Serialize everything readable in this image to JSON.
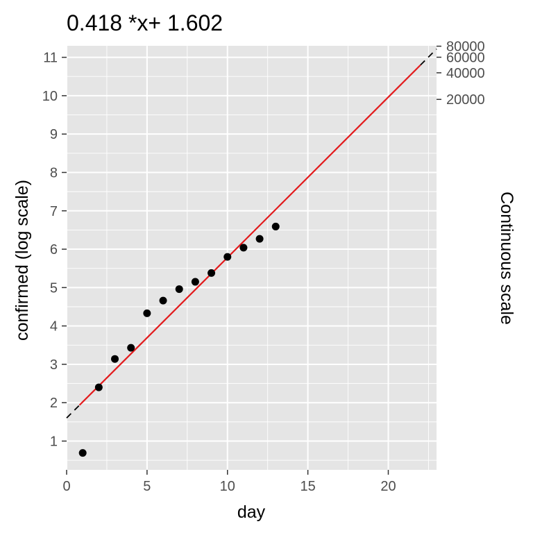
{
  "chart_data": {
    "type": "scatter",
    "title": "0.418 *x+ 1.602",
    "xlabel": "day",
    "ylabel": "confirmed (log scale)",
    "y2label": "Continuous scale",
    "xlim": [
      0,
      23
    ],
    "ylim": [
      0.25,
      11.3
    ],
    "x_ticks": [
      0,
      5,
      10,
      15,
      20
    ],
    "y_ticks": [
      1,
      2,
      3,
      4,
      5,
      6,
      7,
      8,
      9,
      10,
      11
    ],
    "y2_ticks": [
      20000,
      40000,
      60000,
      80000
    ],
    "grid": true,
    "points": {
      "x": [
        1,
        2,
        3,
        4,
        5,
        6,
        7,
        8,
        9,
        10,
        11,
        12,
        13
      ],
      "y": [
        0.69,
        2.4,
        3.14,
        3.43,
        4.33,
        4.66,
        4.96,
        5.15,
        5.38,
        5.8,
        6.04,
        6.27,
        6.59
      ]
    },
    "fit_line": {
      "slope": 0.418,
      "intercept": 1.602,
      "solid_range": [
        0.8,
        22
      ],
      "dashed_range": [
        0,
        23
      ],
      "color": "#e41a1c"
    },
    "colors": {
      "panel": "#e5e5e5",
      "grid": "#ffffff",
      "points": "#000000",
      "fit": "#e41a1c"
    }
  }
}
